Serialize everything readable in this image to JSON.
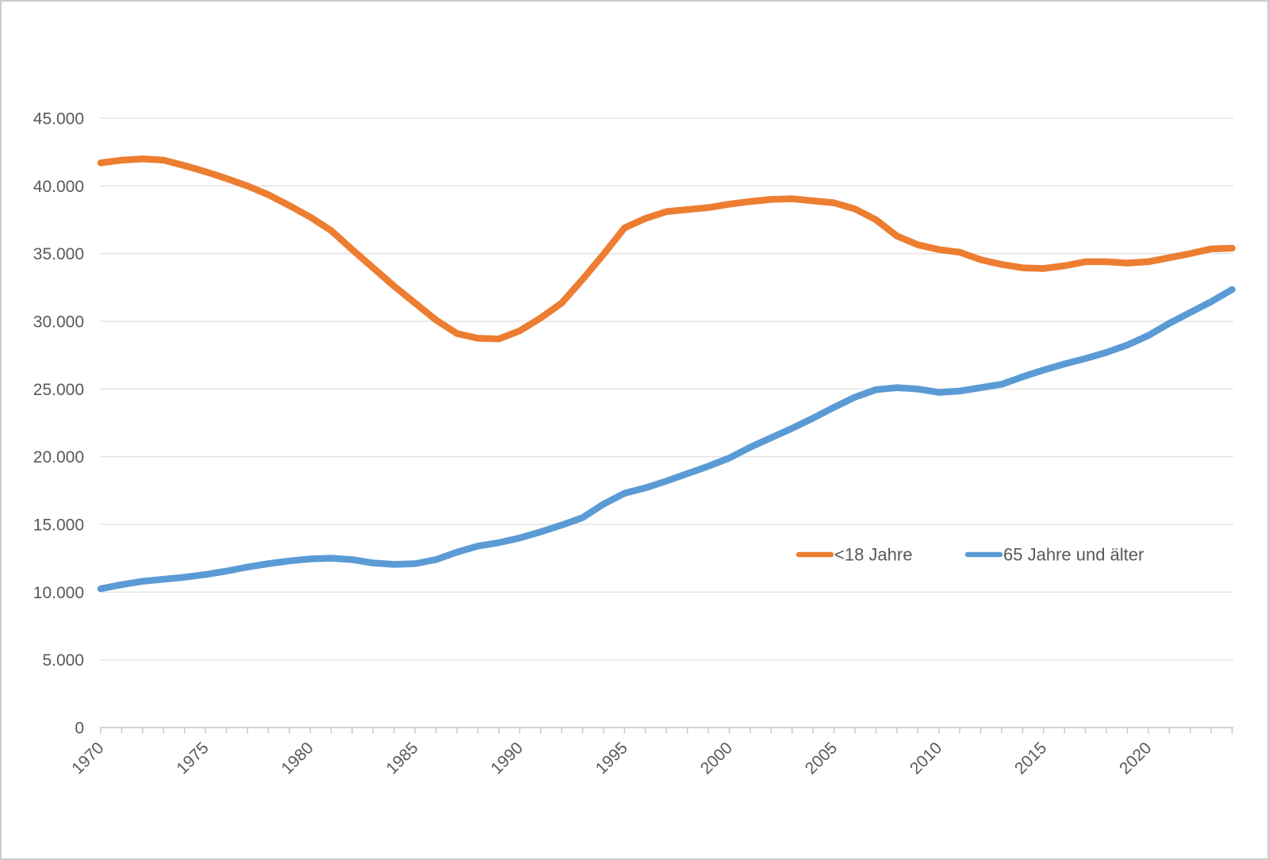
{
  "frame": {
    "background": "#ffffff",
    "border_color": "#cbcbcb"
  },
  "colors": {
    "series_under18": "#ED7D31",
    "series_65plus": "#5B9BD5",
    "gridline": "#e3e3e3",
    "axis_line": "#d6d6d6",
    "tick": "#c9c9c9",
    "axis_text": "#595959"
  },
  "legend": {
    "items": [
      {
        "label": "<18 Jahre",
        "color": "#ED7D31"
      },
      {
        "label": "65 Jahre und älter",
        "color": "#5B9BD5"
      }
    ]
  },
  "chart_data": {
    "type": "line",
    "title": "",
    "xlabel": "",
    "ylabel": "",
    "grid": true,
    "legend_position": "inside-right-middle",
    "ylim": [
      0,
      45000
    ],
    "ytick_step": 5000,
    "ytick_values": [
      0,
      5000,
      10000,
      15000,
      20000,
      25000,
      30000,
      35000,
      40000,
      45000
    ],
    "ytick_labels": [
      "0",
      "5.000",
      "10.000",
      "15.000",
      "20.000",
      "25.000",
      "30.000",
      "35.000",
      "40.000",
      "45.000"
    ],
    "xtick_labels": [
      "1970",
      "1975",
      "1980",
      "1985",
      "1990",
      "1995",
      "2000",
      "2005",
      "2010",
      "2015",
      "2020"
    ],
    "x": [
      1970,
      1971,
      1972,
      1973,
      1974,
      1975,
      1976,
      1977,
      1978,
      1979,
      1980,
      1981,
      1982,
      1983,
      1984,
      1985,
      1986,
      1987,
      1988,
      1989,
      1990,
      1991,
      1992,
      1993,
      1994,
      1995,
      1996,
      1997,
      1998,
      1999,
      2000,
      2001,
      2002,
      2003,
      2004,
      2005,
      2006,
      2007,
      2008,
      2009,
      2010,
      2011,
      2012,
      2013,
      2014,
      2015,
      2016,
      2017,
      2018,
      2019,
      2020,
      2021,
      2022,
      2023,
      2024
    ],
    "series": [
      {
        "name": "<18 Jahre",
        "color": "#ED7D31",
        "values": [
          41700,
          41900,
          42000,
          41900,
          41500,
          41050,
          40550,
          40000,
          39350,
          38550,
          37700,
          36700,
          35300,
          33950,
          32600,
          31350,
          30100,
          29100,
          28750,
          28700,
          29300,
          30250,
          31350,
          33100,
          34950,
          36900,
          37600,
          38100,
          38250,
          38400,
          38650,
          38850,
          39000,
          39050,
          38900,
          38750,
          38300,
          37500,
          36300,
          35650,
          35300,
          35100,
          34550,
          34200,
          33950,
          33900,
          34100,
          34400,
          34400,
          34300,
          34400,
          34700,
          35000,
          35350,
          35400
        ]
      },
      {
        "name": "65 Jahre und älter",
        "color": "#5B9BD5",
        "values": [
          10250,
          10550,
          10800,
          10950,
          11100,
          11300,
          11550,
          11850,
          12100,
          12300,
          12450,
          12500,
          12400,
          12150,
          12050,
          12100,
          12400,
          12950,
          13400,
          13650,
          14000,
          14450,
          14950,
          15500,
          16500,
          17300,
          17700,
          18200,
          18750,
          19300,
          19900,
          20700,
          21400,
          22100,
          22850,
          23650,
          24400,
          24950,
          25100,
          25000,
          24750,
          24850,
          25100,
          25350,
          25900,
          26400,
          26850,
          27250,
          27700,
          28250,
          28950,
          29850,
          30650,
          31450,
          32350
        ]
      }
    ]
  }
}
